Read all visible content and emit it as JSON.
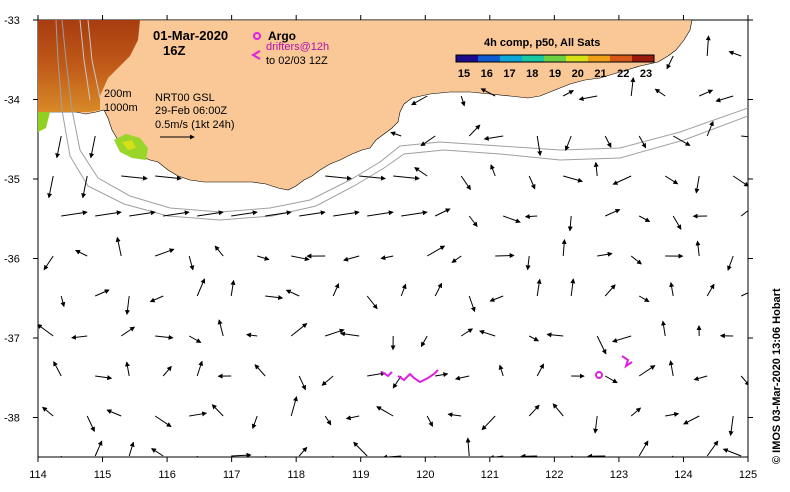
{
  "map": {
    "date": "01-Mar-2020",
    "time": "16Z",
    "legend_argo": "Argo",
    "legend_drifters_1": "drifters@12h",
    "legend_drifters_2": "to 02/03 12Z",
    "isobath_200": "200m",
    "isobath_1000": "1000m",
    "product": "NRT00 GSL",
    "product_time": "29-Feb 06:00Z",
    "vector_scale": "0.5m/s (1kt 24h)",
    "colorbar_title": "4h comp, p50, All Sats",
    "colorbar_ticks": [
      "15",
      "16",
      "17",
      "18",
      "19",
      "20",
      "21",
      "22",
      "23"
    ],
    "colorbar_colors": [
      "#1a0c8a",
      "#0f5ad0",
      "#11a6d8",
      "#18c8a0",
      "#6cd040",
      "#d8e018",
      "#f0a018",
      "#d85818",
      "#9a1a0c"
    ],
    "credit": "©  IMOS 03-Mar-2020 13:06 Hobart",
    "land_color": "#f9c896",
    "drifter_color": "#e020e0",
    "lon_ticks": [
      "114",
      "115",
      "116",
      "117",
      "118",
      "119",
      "120",
      "121",
      "122",
      "123",
      "124",
      "125"
    ],
    "lat_ticks": [
      "-33",
      "-34",
      "-35",
      "-36",
      "-37",
      "-38"
    ],
    "lon_range": [
      114,
      125
    ],
    "lat_range": [
      -38.5,
      -33
    ]
  }
}
